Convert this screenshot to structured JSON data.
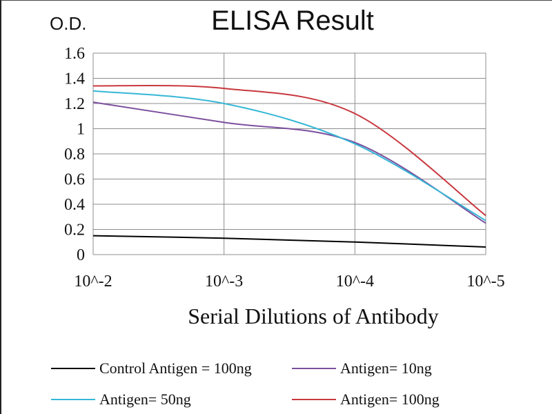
{
  "chart_data": {
    "type": "line",
    "title": "ELISA Result",
    "ylabel": "O.D.",
    "xlabel": "Serial Dilutions  of Antibody",
    "categories": [
      "10^-2",
      "10^-3",
      "10^-4",
      "10^-5"
    ],
    "x_ticks": [
      "10^-2",
      "10^-3",
      "10^-4",
      "10^-5"
    ],
    "y_ticks": [
      "0",
      "0.2",
      "0.4",
      "0.6",
      "0.8",
      "1",
      "1.2",
      "1.4",
      "1.6"
    ],
    "ylim": [
      0,
      1.6
    ],
    "x_scale": "log",
    "grid": true,
    "legend_position": "bottom",
    "series": [
      {
        "name": "Control Antigen = 100ng",
        "color": "#000000",
        "x": [
          0.01,
          0.001,
          0.0001,
          1e-05
        ],
        "y": [
          0.15,
          0.13,
          0.1,
          0.06
        ]
      },
      {
        "name": "Antigen= 10ng",
        "color": "#7b4f9d",
        "x": [
          0.01,
          0.001,
          0.0001,
          1e-05
        ],
        "y": [
          1.21,
          1.05,
          0.89,
          0.25
        ]
      },
      {
        "name": "Antigen= 50ng",
        "color": "#35b6d6",
        "x": [
          0.01,
          0.001,
          0.0001,
          1e-05
        ],
        "y": [
          1.3,
          1.2,
          0.88,
          0.27
        ]
      },
      {
        "name": "Antigen= 100ng",
        "color": "#c8373d",
        "x": [
          0.01,
          0.001,
          0.0001,
          1e-05
        ],
        "y": [
          1.34,
          1.32,
          1.12,
          0.31
        ]
      }
    ]
  }
}
